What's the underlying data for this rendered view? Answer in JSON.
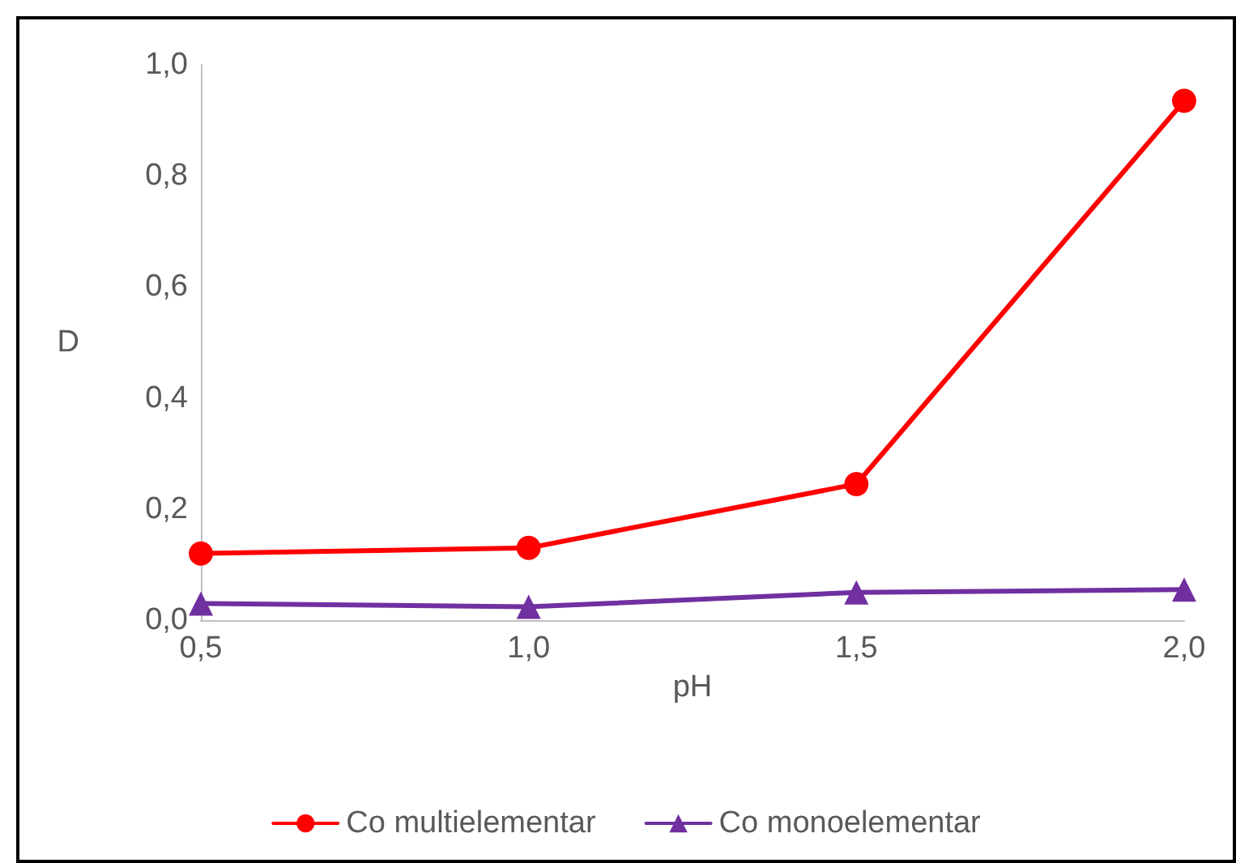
{
  "chart_data": {
    "type": "line",
    "xlabel": "pH",
    "ylabel": "D",
    "x": [
      0.5,
      1.0,
      1.5,
      2.0
    ],
    "series": [
      {
        "name": "Co multielementar",
        "color": "#ff0000",
        "marker": "circle",
        "values": [
          0.12,
          0.13,
          0.245,
          0.935
        ]
      },
      {
        "name": "Co monoelementar",
        "color": "#7030a0",
        "marker": "triangle",
        "values": [
          0.03,
          0.024,
          0.05,
          0.055
        ]
      }
    ],
    "xlim": [
      0.5,
      2.0
    ],
    "xticks": [
      {
        "value": 0.5,
        "label": "0,5"
      },
      {
        "value": 1.0,
        "label": "1,0"
      },
      {
        "value": 1.5,
        "label": "1,5"
      },
      {
        "value": 2.0,
        "label": "2,0"
      }
    ],
    "ylim": [
      0,
      1.0
    ],
    "yticks": [
      {
        "value": 0,
        "label": "0,0"
      },
      {
        "value": 0.2,
        "label": "0,2"
      },
      {
        "value": 0.4,
        "label": "0,4"
      },
      {
        "value": 0.6,
        "label": "0,6"
      },
      {
        "value": 0.8,
        "label": "0,8"
      },
      {
        "value": 1.0,
        "label": "1,0"
      }
    ],
    "grid": false,
    "legend": "bottom",
    "line_style": "solid"
  }
}
